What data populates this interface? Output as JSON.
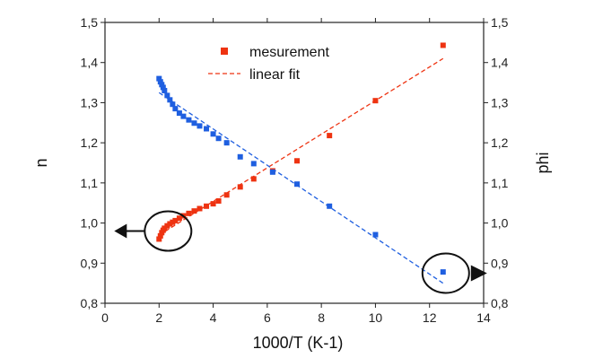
{
  "chart_data": {
    "type": "scatter",
    "xlabel": "1000/T (K-1)",
    "ylabel_left": "n",
    "ylabel_right": "phi",
    "xlim": [
      0,
      14
    ],
    "ylim": [
      0.8,
      1.5
    ],
    "x_ticks": [
      "0",
      "2",
      "4",
      "6",
      "8",
      "10",
      "12",
      "14"
    ],
    "y_ticks": [
      "0,8",
      "0,9",
      "1,0",
      "1,1",
      "1,2",
      "1,3",
      "1,4",
      "1,5"
    ],
    "legend": {
      "position": "top-center",
      "entries": [
        "mesurement",
        "linear fit"
      ]
    },
    "grid": false,
    "series": [
      {
        "axis": "left",
        "color": "#ee3311",
        "x": [
          2.0,
          2.05,
          2.1,
          2.15,
          2.2,
          2.3,
          2.4,
          2.5,
          2.6,
          2.75,
          2.9,
          3.1,
          3.3,
          3.5,
          3.75,
          4.0,
          4.2,
          4.5,
          5.0,
          5.5,
          6.2,
          7.1,
          8.3,
          10.0,
          12.5
        ],
        "values": [
          0.96,
          0.968,
          0.976,
          0.982,
          0.987,
          0.993,
          0.998,
          1.002,
          1.006,
          1.012,
          1.018,
          1.024,
          1.03,
          1.036,
          1.042,
          1.048,
          1.055,
          1.07,
          1.09,
          1.11,
          1.13,
          1.155,
          1.218,
          1.305,
          1.443
        ]
      },
      {
        "axis": "right",
        "color": "#1f5fe0",
        "x": [
          2.0,
          2.05,
          2.1,
          2.15,
          2.2,
          2.3,
          2.4,
          2.5,
          2.6,
          2.75,
          2.9,
          3.1,
          3.3,
          3.5,
          3.75,
          4.0,
          4.2,
          4.5,
          5.0,
          5.5,
          6.2,
          7.1,
          8.3,
          10.0,
          12.5
        ],
        "values": [
          1.36,
          1.352,
          1.345,
          1.338,
          1.33,
          1.318,
          1.307,
          1.296,
          1.285,
          1.274,
          1.266,
          1.257,
          1.249,
          1.242,
          1.235,
          1.222,
          1.211,
          1.2,
          1.165,
          1.148,
          1.127,
          1.097,
          1.042,
          0.971,
          0.878
        ]
      }
    ],
    "fits": [
      {
        "axis": "left",
        "color": "#ee3311",
        "x": [
          2.0,
          12.5
        ],
        "values": [
          0.97,
          1.41
        ]
      },
      {
        "axis": "right",
        "color": "#1f5fe0",
        "x": [
          2.0,
          12.5
        ],
        "values": [
          1.325,
          0.85
        ]
      }
    ],
    "annotations": [
      {
        "type": "circle-arrow",
        "axis": "left",
        "x": 2.2,
        "value": 0.98,
        "arrow": "left"
      },
      {
        "type": "circle-arrow",
        "axis": "right",
        "x": 12.6,
        "value": 0.875,
        "arrow": "right"
      }
    ]
  }
}
